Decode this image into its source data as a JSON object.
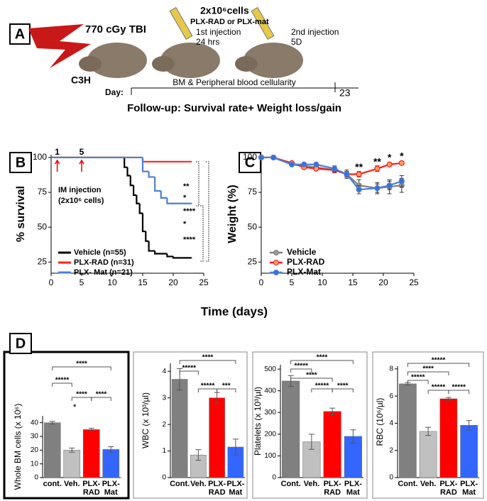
{
  "panel_a": {
    "label": "A",
    "tbi": "770 cGy TBI",
    "cells_count": "2x10⁶cells",
    "cells_type": "PLX-RAD or PLX-mat",
    "inj1": "1st injection",
    "inj1_time": "24 hrs",
    "inj2": "2nd injection",
    "inj2_time": "5D",
    "strain": "C3H",
    "cellularity": "BM & Peripheral blood cellularity",
    "day_label": "Day:",
    "day_end": "23",
    "follow_up": "Follow-up: Survival rate+ Weight loss/gain"
  },
  "shared_x_label": "Time (days)",
  "chart_data": [
    {
      "type": "step",
      "panel": "B",
      "ylabel": "% survival",
      "xlim": [
        0,
        25
      ],
      "xticks": [
        0,
        5,
        10,
        15,
        20,
        25
      ],
      "ylim": [
        17,
        102
      ],
      "yticks": [
        25,
        50,
        75,
        100
      ],
      "series": [
        {
          "name": "Vehicle (n=55)",
          "color": "#000000",
          "x": [
            0,
            12,
            12.5,
            13,
            13.5,
            14,
            14.5,
            15,
            15.5,
            16,
            17,
            19,
            20,
            23
          ],
          "values": [
            100,
            93,
            87,
            80,
            73,
            67,
            60,
            47,
            40,
            33,
            31,
            29,
            28,
            28
          ]
        },
        {
          "name": "PLX-RAD (n=31)",
          "color": "#ff2020",
          "x": [
            0,
            15,
            23
          ],
          "values": [
            100,
            97,
            97
          ]
        },
        {
          "name": "PLX- Mat (n=21)",
          "color": "#4a7fd6",
          "x": [
            0,
            15,
            16,
            17,
            18,
            19,
            23
          ],
          "values": [
            100,
            90,
            86,
            76,
            71,
            67,
            67
          ]
        }
      ],
      "injection_days": [
        1,
        5
      ],
      "annotations": [
        "IM injection",
        "(2x10⁶ cells)"
      ],
      "significance": [
        "**",
        "*",
        "****",
        "*",
        "****"
      ]
    },
    {
      "type": "line",
      "panel": "C",
      "ylabel": "Weight (%)",
      "xlim": [
        0,
        25
      ],
      "xticks": [
        0,
        5,
        10,
        15,
        20,
        25
      ],
      "ylim": [
        17,
        102
      ],
      "yticks": [
        25,
        50,
        75,
        100
      ],
      "x": [
        0,
        2,
        5,
        7,
        9,
        12,
        14,
        16,
        19,
        21,
        23
      ],
      "series": [
        {
          "name": "Vehicle",
          "color": "#808080",
          "marker_color": "#9a9a9a",
          "values": [
            100,
            100,
            95,
            94,
            93,
            91,
            88,
            80,
            78,
            79,
            80
          ],
          "errors": [
            0,
            0,
            1,
            1,
            1,
            2,
            3,
            4,
            4,
            5,
            5
          ]
        },
        {
          "name": "PLX-RAD",
          "color": "#ff1a1a",
          "marker_color": "#f4a460",
          "values": [
            100,
            100,
            96,
            93,
            92,
            91,
            88,
            88,
            92,
            95,
            96
          ],
          "errors": [
            0,
            0,
            1,
            1,
            1,
            1,
            2,
            2,
            2,
            1,
            1
          ]
        },
        {
          "name": "PLX-Mat",
          "color": "#4a7fd6",
          "marker_color": "#3a6fd8",
          "values": [
            100,
            100,
            95,
            95,
            95,
            92,
            88,
            77,
            78,
            80,
            83
          ],
          "errors": [
            0,
            0,
            1,
            1,
            1,
            2,
            2,
            3,
            3,
            3,
            4
          ]
        }
      ],
      "significance": [
        "**",
        "**",
        "*",
        "*"
      ],
      "significance_x": [
        16,
        19,
        21,
        23
      ]
    },
    {
      "type": "bar",
      "panel": "D",
      "ylabel": "Whole BM cells (x 10⁶)",
      "categories": [
        "cont.",
        "Veh.",
        "PLX-RAD",
        "PLX-Mat"
      ],
      "values": [
        40,
        20,
        35,
        20.5
      ],
      "errors": [
        1,
        1.5,
        1,
        2
      ],
      "colors": [
        "#808080",
        "#c0c0c0",
        "#ff0000",
        "#3366ff"
      ],
      "ylim": [
        0,
        45
      ],
      "yticks": [
        0,
        10,
        20,
        30,
        40
      ],
      "significance": [
        "*****",
        "****",
        "****",
        "****",
        "*"
      ]
    },
    {
      "type": "bar",
      "ylabel": "WBC (x 10³/µl)",
      "categories": [
        "Cont.",
        "Veh.",
        "PLX-RAD",
        "PLX-Mat"
      ],
      "values": [
        3.7,
        0.85,
        3.0,
        1.15
      ],
      "errors": [
        0.4,
        0.2,
        0.2,
        0.3
      ],
      "colors": [
        "#808080",
        "#c0c0c0",
        "#ff0000",
        "#3366ff"
      ],
      "ylim": [
        0,
        4.3
      ],
      "yticks": [
        0,
        1,
        2,
        3,
        4
      ],
      "significance": [
        "*****",
        "****",
        "*****",
        "***"
      ]
    },
    {
      "type": "bar",
      "ylabel": "Platelets (x 10³/µl)",
      "categories": [
        "Cont.",
        "Veh.",
        "PLX-RAD",
        "PLX-Mat"
      ],
      "values": [
        445,
        165,
        305,
        190
      ],
      "errors": [
        25,
        35,
        15,
        30
      ],
      "colors": [
        "#808080",
        "#c0c0c0",
        "#ff0000",
        "#3366ff"
      ],
      "ylim": [
        0,
        520
      ],
      "yticks": [
        0,
        100,
        200,
        300,
        400,
        500
      ],
      "significance": [
        "*****",
        "****",
        "****",
        "*****",
        "****"
      ]
    },
    {
      "type": "bar",
      "ylabel": "RBC (10⁶/µl)",
      "categories": [
        "Cont.",
        "Veh.",
        "PLX-RAD",
        "PLX-Mat"
      ],
      "values": [
        6.9,
        3.4,
        5.8,
        3.85
      ],
      "errors": [
        0.1,
        0.3,
        0.1,
        0.35
      ],
      "colors": [
        "#808080",
        "#c0c0c0",
        "#ff0000",
        "#3366ff"
      ],
      "ylim": [
        0,
        8.2
      ],
      "yticks": [
        0,
        2,
        4,
        6,
        8
      ],
      "significance": [
        "*****",
        "****",
        "*****",
        "*****",
        "*****"
      ]
    }
  ]
}
